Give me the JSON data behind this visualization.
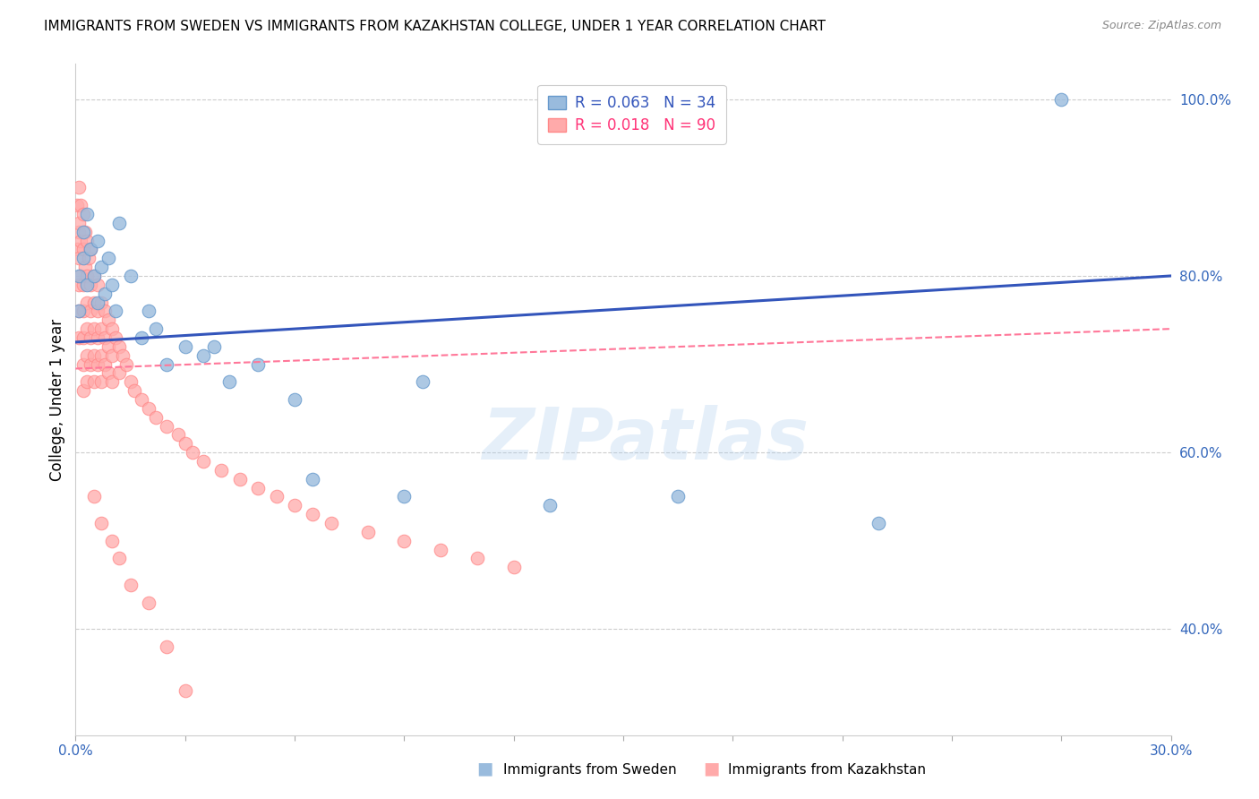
{
  "title": "IMMIGRANTS FROM SWEDEN VS IMMIGRANTS FROM KAZAKHSTAN COLLEGE, UNDER 1 YEAR CORRELATION CHART",
  "source": "Source: ZipAtlas.com",
  "ylabel": "College, Under 1 year",
  "legend_label_blue": "Immigrants from Sweden",
  "legend_label_pink": "Immigrants from Kazakhstan",
  "R_blue": 0.063,
  "N_blue": 34,
  "R_pink": 0.018,
  "N_pink": 90,
  "color_blue": "#99BBDD",
  "color_pink": "#FFAAAA",
  "color_blue_edge": "#6699CC",
  "color_pink_edge": "#FF8888",
  "color_blue_line": "#3355BB",
  "color_pink_line": "#FF7799",
  "x_min": 0.0,
  "x_max": 0.3,
  "y_min": 0.28,
  "y_max": 1.04,
  "watermark": "ZIPatlas",
  "sweden_x": [
    0.001,
    0.001,
    0.002,
    0.002,
    0.003,
    0.003,
    0.004,
    0.005,
    0.006,
    0.006,
    0.007,
    0.008,
    0.009,
    0.01,
    0.011,
    0.012,
    0.015,
    0.018,
    0.02,
    0.022,
    0.025,
    0.03,
    0.035,
    0.038,
    0.042,
    0.05,
    0.06,
    0.065,
    0.09,
    0.095,
    0.13,
    0.165,
    0.22,
    0.27
  ],
  "sweden_y": [
    0.8,
    0.76,
    0.82,
    0.85,
    0.79,
    0.87,
    0.83,
    0.8,
    0.77,
    0.84,
    0.81,
    0.78,
    0.82,
    0.79,
    0.76,
    0.86,
    0.8,
    0.73,
    0.76,
    0.74,
    0.7,
    0.72,
    0.71,
    0.72,
    0.68,
    0.7,
    0.66,
    0.57,
    0.55,
    0.68,
    0.54,
    0.55,
    0.52,
    1.0
  ],
  "kazakh_x": [
    0.0005,
    0.0005,
    0.0008,
    0.001,
    0.001,
    0.001,
    0.001,
    0.001,
    0.001,
    0.0015,
    0.0015,
    0.0015,
    0.002,
    0.002,
    0.002,
    0.002,
    0.002,
    0.002,
    0.002,
    0.0025,
    0.0025,
    0.003,
    0.003,
    0.003,
    0.003,
    0.003,
    0.003,
    0.0035,
    0.004,
    0.004,
    0.004,
    0.004,
    0.004,
    0.005,
    0.005,
    0.005,
    0.005,
    0.005,
    0.006,
    0.006,
    0.006,
    0.006,
    0.007,
    0.007,
    0.007,
    0.007,
    0.008,
    0.008,
    0.008,
    0.009,
    0.009,
    0.009,
    0.01,
    0.01,
    0.01,
    0.011,
    0.012,
    0.012,
    0.013,
    0.014,
    0.015,
    0.016,
    0.018,
    0.02,
    0.022,
    0.025,
    0.028,
    0.03,
    0.032,
    0.035,
    0.04,
    0.045,
    0.05,
    0.055,
    0.06,
    0.065,
    0.07,
    0.08,
    0.09,
    0.1,
    0.11,
    0.12,
    0.005,
    0.007,
    0.01,
    0.012,
    0.015,
    0.02,
    0.025,
    0.03
  ],
  "kazakh_y": [
    0.88,
    0.83,
    0.85,
    0.9,
    0.86,
    0.82,
    0.79,
    0.76,
    0.73,
    0.88,
    0.84,
    0.8,
    0.87,
    0.83,
    0.79,
    0.76,
    0.73,
    0.7,
    0.67,
    0.85,
    0.81,
    0.84,
    0.8,
    0.77,
    0.74,
    0.71,
    0.68,
    0.82,
    0.83,
    0.79,
    0.76,
    0.73,
    0.7,
    0.8,
    0.77,
    0.74,
    0.71,
    0.68,
    0.79,
    0.76,
    0.73,
    0.7,
    0.77,
    0.74,
    0.71,
    0.68,
    0.76,
    0.73,
    0.7,
    0.75,
    0.72,
    0.69,
    0.74,
    0.71,
    0.68,
    0.73,
    0.72,
    0.69,
    0.71,
    0.7,
    0.68,
    0.67,
    0.66,
    0.65,
    0.64,
    0.63,
    0.62,
    0.61,
    0.6,
    0.59,
    0.58,
    0.57,
    0.56,
    0.55,
    0.54,
    0.53,
    0.52,
    0.51,
    0.5,
    0.49,
    0.48,
    0.47,
    0.55,
    0.52,
    0.5,
    0.48,
    0.45,
    0.43,
    0.38,
    0.33
  ]
}
